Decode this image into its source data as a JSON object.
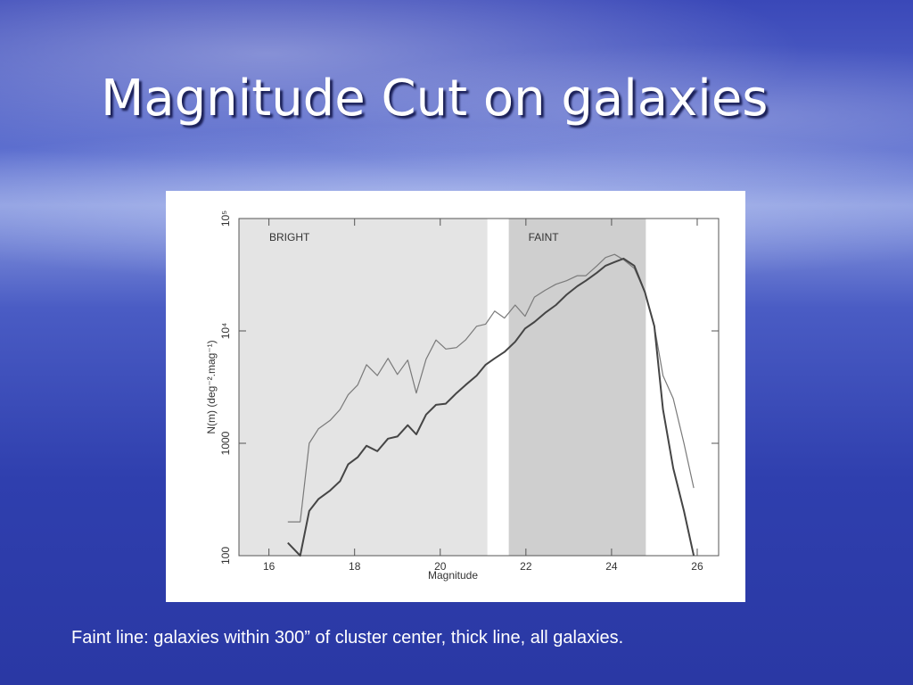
{
  "title": "Magnitude Cut on galaxies",
  "caption": "Faint line: galaxies within 300” of cluster center, thick line, all galaxies.",
  "chart_data": {
    "type": "line",
    "xlabel": "Magnitude",
    "ylabel": "N(m)  (deg⁻².mag⁻¹)",
    "log_y": true,
    "xlim": [
      15.3,
      26.5
    ],
    "xticks": [
      16,
      18,
      20,
      22,
      24,
      26
    ],
    "ylim": [
      100,
      100000
    ],
    "yticks": [
      100,
      1000,
      {
        "value": 10000,
        "label": "10⁴"
      },
      {
        "value": 100000,
        "label": "10⁵"
      }
    ],
    "regions": [
      {
        "label": "BRIGHT",
        "start": 15.3,
        "end": 21.1,
        "color": "#e4e4e4"
      },
      {
        "label": "FAINT",
        "start": 21.6,
        "end": 24.8,
        "color": "#cfcfcf"
      }
    ],
    "x": [
      16.44,
      16.73,
      16.94,
      17.16,
      17.43,
      17.66,
      17.85,
      18.07,
      18.28,
      18.53,
      18.78,
      19.0,
      19.24,
      19.44,
      19.67,
      19.9,
      20.13,
      20.38,
      20.59,
      20.85,
      21.06,
      21.27,
      21.5,
      21.75,
      21.98,
      22.2,
      22.45,
      22.7,
      22.95,
      23.2,
      23.4,
      23.66,
      23.86,
      24.07,
      24.28,
      24.53,
      24.78,
      25.0,
      25.2,
      25.44,
      25.69,
      25.92
    ],
    "series": [
      {
        "color": "#7a7a7a",
        "width": 1.2,
        "values": [
          200,
          200,
          1000,
          1350,
          1600,
          2000,
          2700,
          3300,
          5000,
          4000,
          5700,
          4100,
          5500,
          2800,
          5600,
          8300,
          6900,
          7100,
          8300,
          11000,
          11500,
          15000,
          13000,
          17000,
          13500,
          20000,
          23000,
          26000,
          28000,
          31000,
          31000,
          38000,
          45000,
          48000,
          43000,
          36000,
          22000,
          11000,
          4000,
          2500,
          1000,
          400
        ]
      },
      {
        "color": "#454545",
        "width": 2,
        "values": [
          130,
          100,
          250,
          320,
          380,
          460,
          650,
          750,
          950,
          850,
          1100,
          1150,
          1450,
          1200,
          1800,
          2200,
          2250,
          2800,
          3300,
          4000,
          5000,
          5700,
          6500,
          8000,
          10500,
          12000,
          14500,
          17000,
          21000,
          25000,
          28000,
          33000,
          38000,
          41000,
          44000,
          38000,
          22000,
          11000,
          2000,
          600,
          250,
          100
        ]
      }
    ]
  }
}
